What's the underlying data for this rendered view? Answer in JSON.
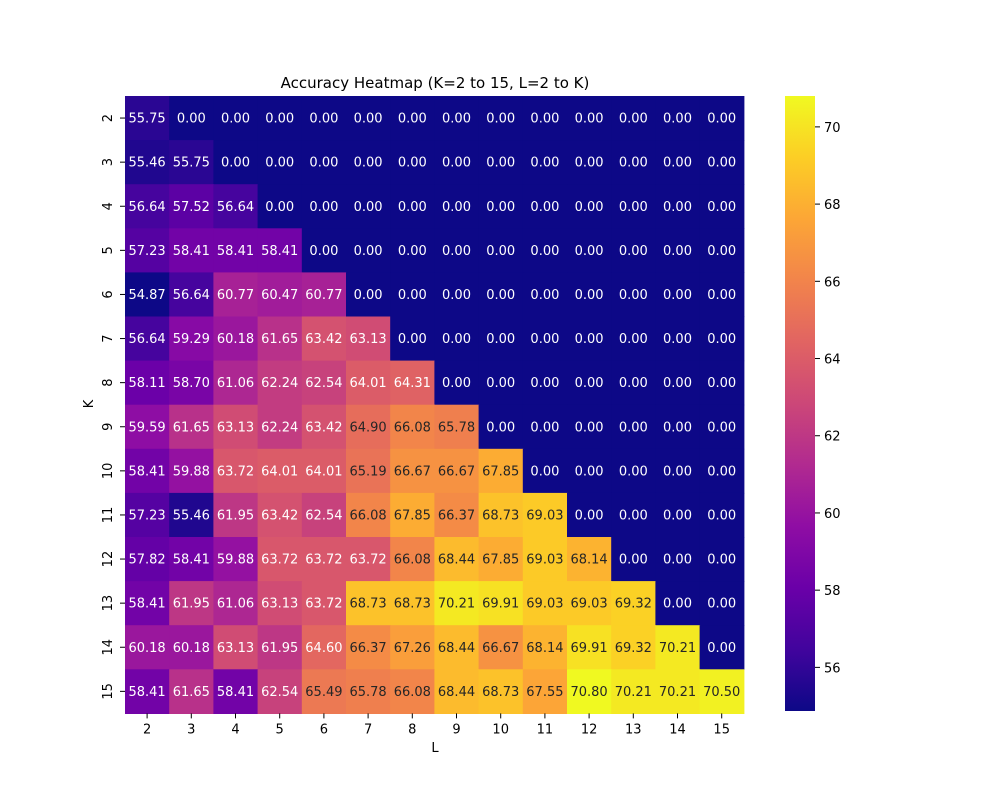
{
  "chart_data": {
    "type": "heatmap",
    "title": "Accuracy Heatmap (K=2 to 15, L=2 to K)",
    "xlabel": "L",
    "ylabel": "K",
    "x_categories": [
      "2",
      "3",
      "4",
      "5",
      "6",
      "7",
      "8",
      "9",
      "10",
      "11",
      "12",
      "13",
      "14",
      "15"
    ],
    "y_categories": [
      "2",
      "3",
      "4",
      "5",
      "6",
      "7",
      "8",
      "9",
      "10",
      "11",
      "12",
      "13",
      "14",
      "15"
    ],
    "values": [
      [
        55.75,
        0.0,
        0.0,
        0.0,
        0.0,
        0.0,
        0.0,
        0.0,
        0.0,
        0.0,
        0.0,
        0.0,
        0.0,
        0.0
      ],
      [
        55.46,
        55.75,
        0.0,
        0.0,
        0.0,
        0.0,
        0.0,
        0.0,
        0.0,
        0.0,
        0.0,
        0.0,
        0.0,
        0.0
      ],
      [
        56.64,
        57.52,
        56.64,
        0.0,
        0.0,
        0.0,
        0.0,
        0.0,
        0.0,
        0.0,
        0.0,
        0.0,
        0.0,
        0.0
      ],
      [
        57.23,
        58.41,
        58.41,
        58.41,
        0.0,
        0.0,
        0.0,
        0.0,
        0.0,
        0.0,
        0.0,
        0.0,
        0.0,
        0.0
      ],
      [
        54.87,
        56.64,
        60.77,
        60.47,
        60.77,
        0.0,
        0.0,
        0.0,
        0.0,
        0.0,
        0.0,
        0.0,
        0.0,
        0.0
      ],
      [
        56.64,
        59.29,
        60.18,
        61.65,
        63.42,
        63.13,
        0.0,
        0.0,
        0.0,
        0.0,
        0.0,
        0.0,
        0.0,
        0.0
      ],
      [
        58.11,
        58.7,
        61.06,
        62.24,
        62.54,
        64.01,
        64.31,
        0.0,
        0.0,
        0.0,
        0.0,
        0.0,
        0.0,
        0.0
      ],
      [
        59.59,
        61.65,
        63.13,
        62.24,
        63.42,
        64.9,
        66.08,
        65.78,
        0.0,
        0.0,
        0.0,
        0.0,
        0.0,
        0.0
      ],
      [
        58.41,
        59.88,
        63.72,
        64.01,
        64.01,
        65.19,
        66.67,
        66.67,
        67.85,
        0.0,
        0.0,
        0.0,
        0.0,
        0.0
      ],
      [
        57.23,
        55.46,
        61.95,
        63.42,
        62.54,
        66.08,
        67.85,
        66.37,
        68.73,
        69.03,
        0.0,
        0.0,
        0.0,
        0.0
      ],
      [
        57.82,
        58.41,
        59.88,
        63.72,
        63.72,
        63.72,
        66.08,
        68.44,
        67.85,
        69.03,
        68.14,
        0.0,
        0.0,
        0.0
      ],
      [
        58.41,
        61.95,
        61.06,
        63.13,
        63.72,
        68.73,
        68.73,
        70.21,
        69.91,
        69.03,
        69.03,
        69.32,
        0.0,
        0.0
      ],
      [
        60.18,
        60.18,
        63.13,
        61.95,
        64.6,
        66.37,
        67.26,
        68.44,
        66.67,
        68.14,
        69.91,
        69.32,
        70.21,
        0.0
      ],
      [
        58.41,
        61.65,
        58.41,
        62.54,
        65.49,
        65.78,
        66.08,
        68.44,
        68.73,
        67.55,
        70.8,
        70.21,
        70.21,
        70.5
      ]
    ],
    "colormap": "plasma",
    "color_range": [
      54.87,
      70.8
    ],
    "colorbar_ticks": [
      56,
      58,
      60,
      62,
      64,
      66,
      68,
      70
    ],
    "value_format": "2 decimals",
    "grid": false
  }
}
